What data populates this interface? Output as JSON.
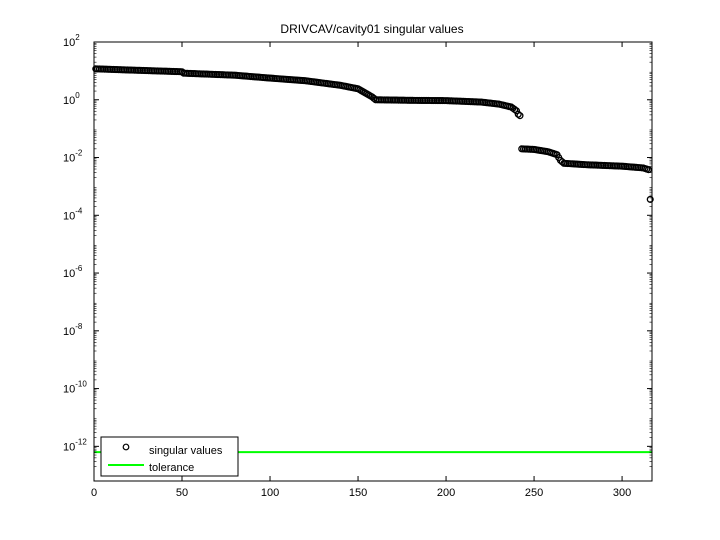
{
  "chart_data": {
    "type": "scatter",
    "title": "DRIVCAV/cavity01 singular values",
    "xlabel": "",
    "ylabel": "",
    "xlim": [
      0,
      317
    ],
    "ylim_exponent": [
      -13.2,
      2
    ],
    "yscale": "log",
    "x_ticks": [
      "0",
      "50",
      "100",
      "150",
      "200",
      "250",
      "300"
    ],
    "x_tick_values": [
      0,
      50,
      100,
      150,
      200,
      250,
      300
    ],
    "y_ticks": [
      {
        "base": "10",
        "exp": "2",
        "value": 2
      },
      {
        "base": "10",
        "exp": "0",
        "value": 0
      },
      {
        "base": "10",
        "exp": "-2",
        "value": -2
      },
      {
        "base": "10",
        "exp": "-4",
        "value": -4
      },
      {
        "base": "10",
        "exp": "-6",
        "value": -6
      },
      {
        "base": "10",
        "exp": "-8",
        "value": -8
      },
      {
        "base": "10",
        "exp": "-10",
        "value": -10
      },
      {
        "base": "10",
        "exp": "-12",
        "value": -12
      }
    ],
    "grid": false,
    "legend_position": "bottom-left",
    "series": [
      {
        "name": "singular values",
        "marker": "circle",
        "color": "#000000",
        "log10_breakpoints": [
          [
            1,
            1.07
          ],
          [
            20,
            1.03
          ],
          [
            35,
            1.0
          ],
          [
            50,
            0.97
          ],
          [
            51,
            0.92
          ],
          [
            80,
            0.85
          ],
          [
            100,
            0.75
          ],
          [
            120,
            0.66
          ],
          [
            140,
            0.5
          ],
          [
            150,
            0.38
          ],
          [
            158,
            0.1
          ],
          [
            160,
            0.0
          ],
          [
            180,
            -0.02
          ],
          [
            200,
            -0.03
          ],
          [
            220,
            -0.08
          ],
          [
            230,
            -0.15
          ],
          [
            237,
            -0.25
          ],
          [
            240,
            -0.38
          ],
          [
            241,
            -0.5
          ]
        ],
        "log10_breakpoints_b": [
          [
            243,
            -1.7
          ],
          [
            250,
            -1.72
          ],
          [
            258,
            -1.8
          ],
          [
            263,
            -1.9
          ],
          [
            265,
            -2.1
          ],
          [
            267,
            -2.2
          ],
          [
            280,
            -2.25
          ],
          [
            300,
            -2.3
          ],
          [
            312,
            -2.36
          ],
          [
            315,
            -2.42
          ]
        ],
        "outliers": [
          [
            242,
            -0.55
          ],
          [
            316,
            -3.45
          ]
        ]
      },
      {
        "name": "tolerance",
        "marker": "line",
        "color": "#00ff00",
        "log10_value": -12.2
      }
    ]
  }
}
